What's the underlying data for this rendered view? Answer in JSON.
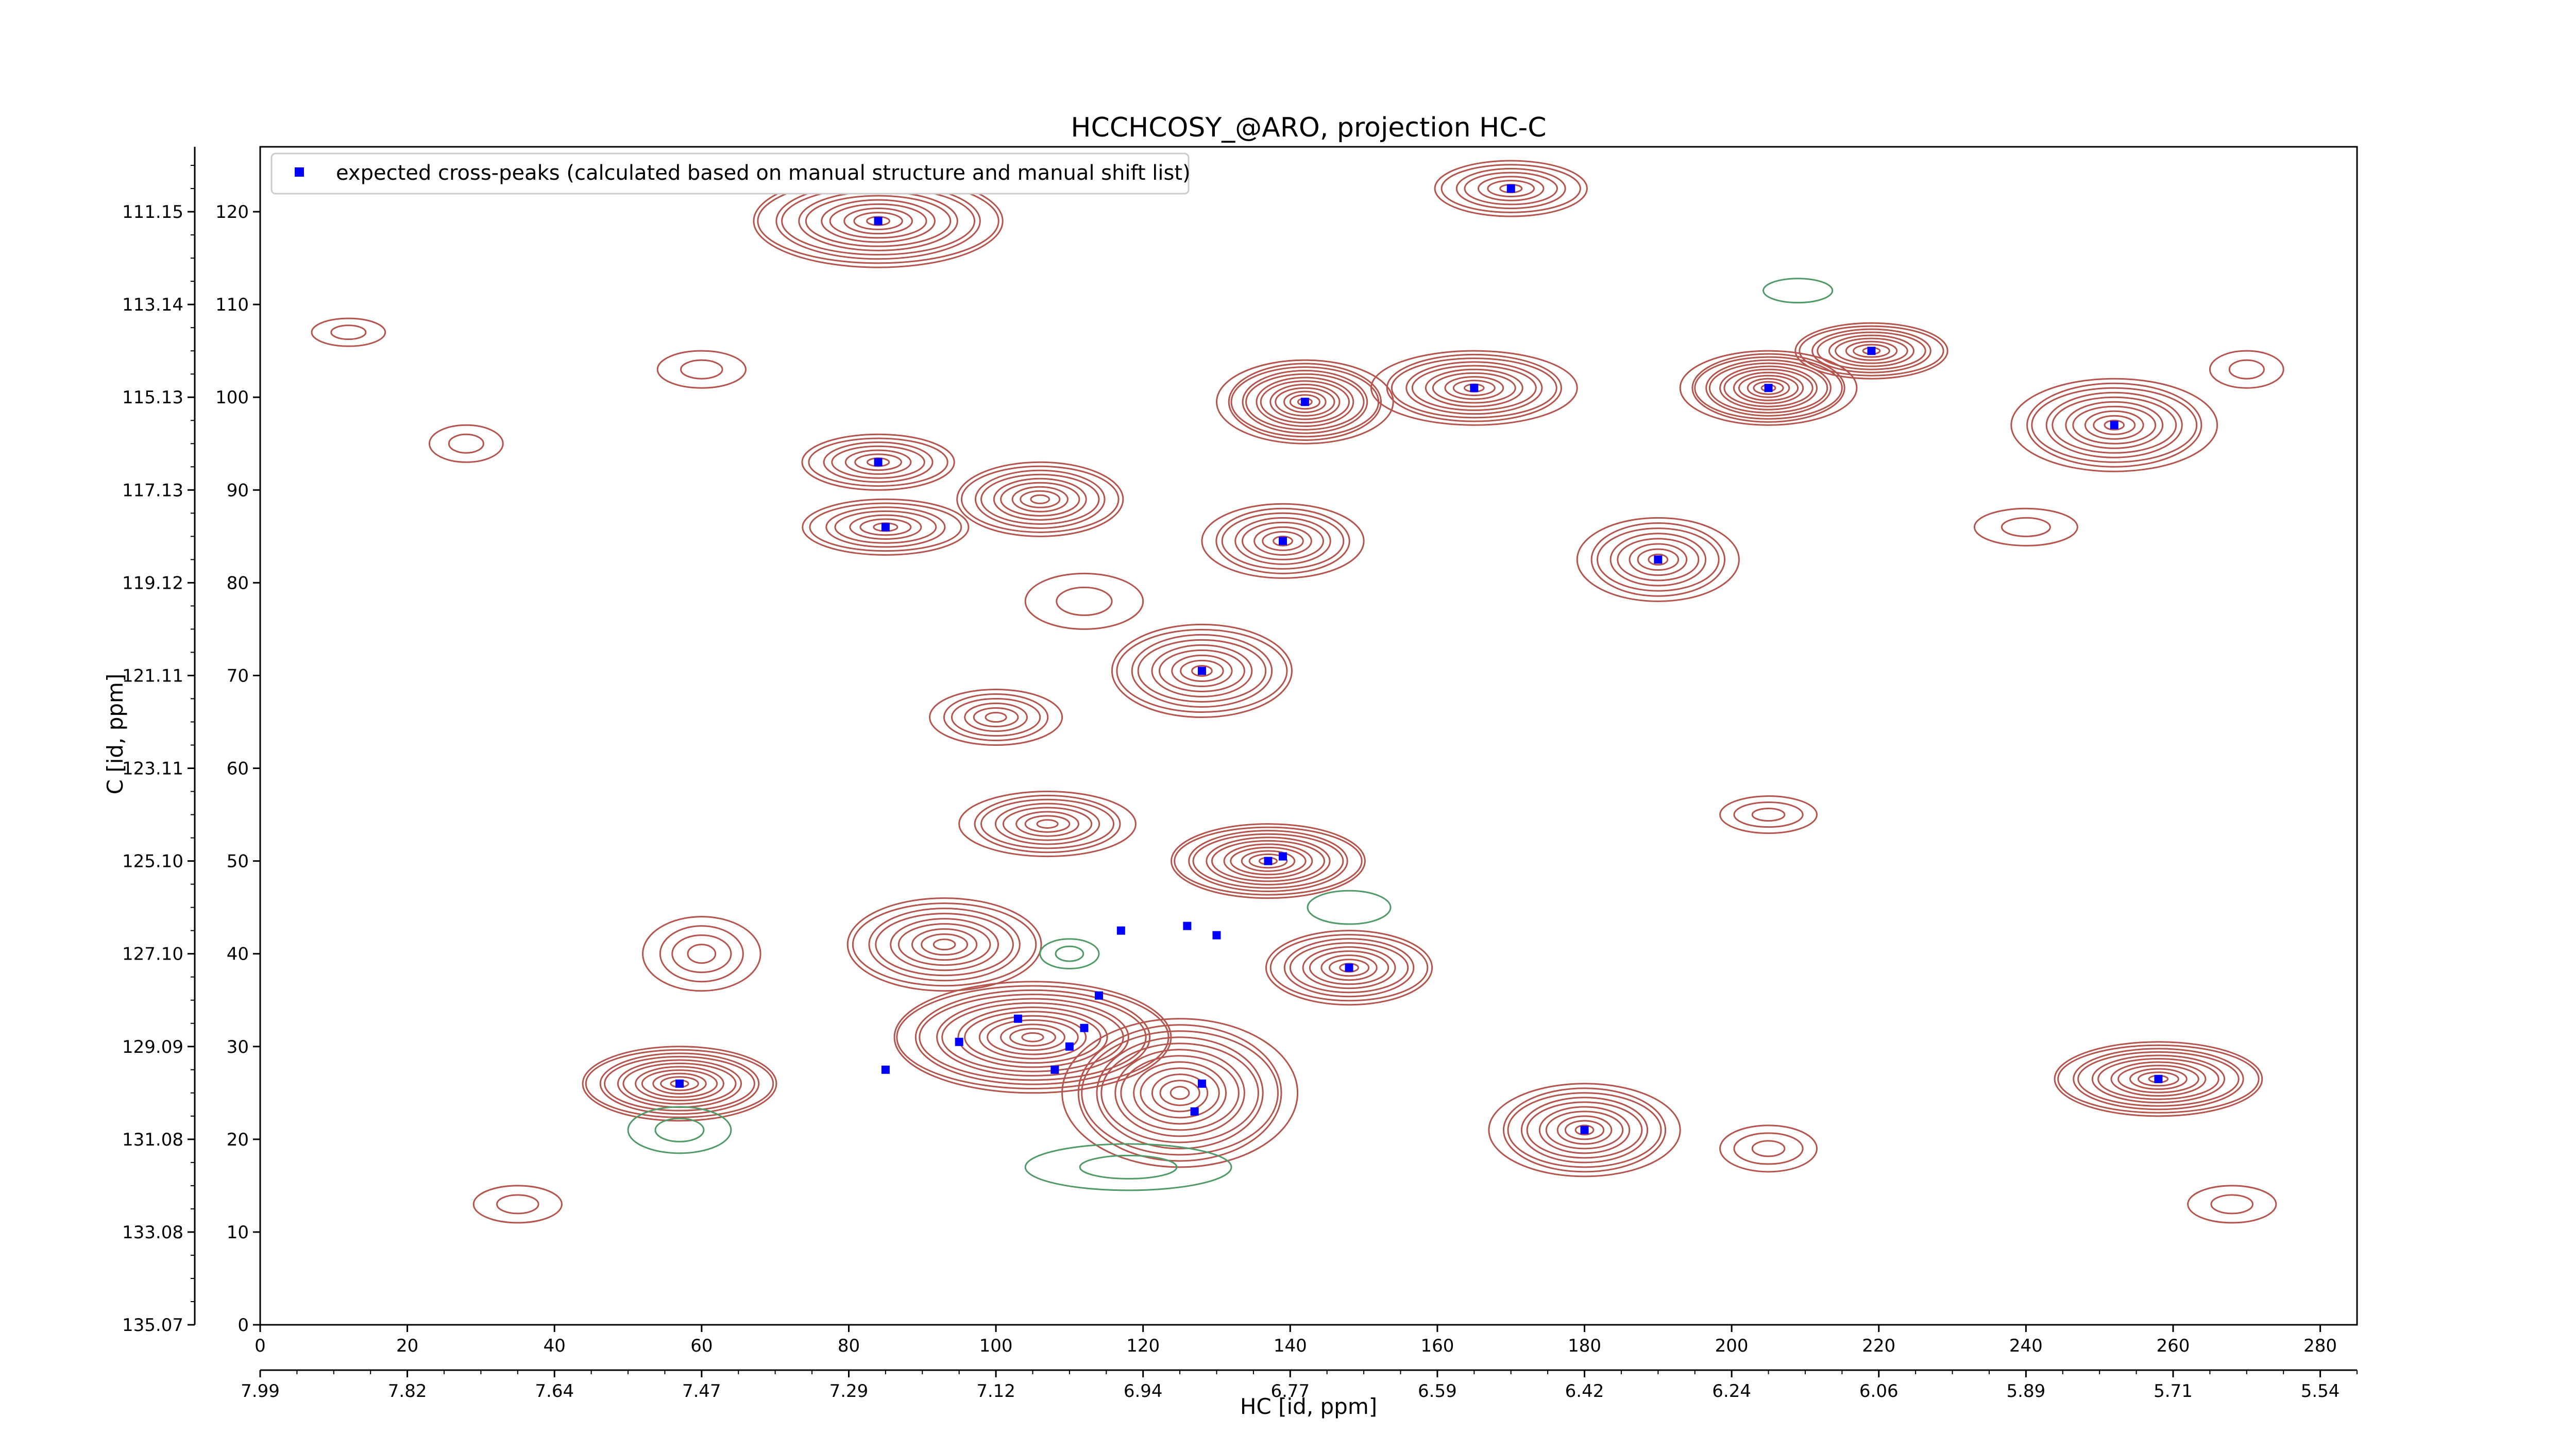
{
  "chart_data": {
    "type": "scatter",
    "title": "HCCHCOSY_@ARO, projection HC-C",
    "xlabel": "HC [id, ppm]",
    "ylabel": "C [id, ppm]",
    "xlim": [
      0,
      285
    ],
    "ylim": [
      0,
      127
    ],
    "x_ticks": [
      0,
      20,
      40,
      60,
      80,
      100,
      120,
      140,
      160,
      180,
      200,
      220,
      240,
      260,
      280
    ],
    "x_ticks_ppm": [
      "7.99",
      "7.82",
      "7.64",
      "7.47",
      "7.29",
      "7.12",
      "6.94",
      "6.77",
      "6.59",
      "6.42",
      "6.24",
      "6.06",
      "5.89",
      "5.71",
      "5.54"
    ],
    "y_ticks": [
      0,
      10,
      20,
      30,
      40,
      50,
      60,
      70,
      80,
      90,
      100,
      110,
      120
    ],
    "y_ticks_ppm": [
      "135.07",
      "133.08",
      "131.08",
      "129.09",
      "127.10",
      "125.10",
      "123.11",
      "121.11",
      "119.12",
      "117.13",
      "115.13",
      "113.14",
      "111.15"
    ],
    "legend": {
      "label": "expected cross-peaks (calculated based on manual structure and manual shift list)",
      "position": "top-left",
      "marker_color": "#0000ff"
    },
    "colors": {
      "positive_contour": "#b5544c",
      "negative_contour": "#4f9a66",
      "marker": "#0000ff"
    },
    "series": [
      {
        "name": "expected cross-peaks (calculated based on manual structure and manual shift list)",
        "points": [
          [
            84,
            119
          ],
          [
            170,
            122.5
          ],
          [
            142,
            99.5
          ],
          [
            165,
            101
          ],
          [
            205,
            101
          ],
          [
            219,
            105
          ],
          [
            252,
            97
          ],
          [
            84,
            93
          ],
          [
            85,
            86
          ],
          [
            139,
            84.5
          ],
          [
            190,
            82.5
          ],
          [
            128,
            70.5
          ],
          [
            137,
            50
          ],
          [
            139,
            50.5
          ],
          [
            117,
            42.5
          ],
          [
            126,
            43
          ],
          [
            130,
            42
          ],
          [
            148,
            38.5
          ],
          [
            114,
            35.5
          ],
          [
            103,
            33
          ],
          [
            112,
            32
          ],
          [
            95,
            30.5
          ],
          [
            110,
            30
          ],
          [
            108,
            27.5
          ],
          [
            85,
            27.5
          ],
          [
            57,
            26
          ],
          [
            128,
            26
          ],
          [
            127,
            23
          ],
          [
            180,
            21
          ],
          [
            258,
            26.5
          ]
        ]
      }
    ],
    "contours": {
      "positive": [
        {
          "x": 84,
          "y": 119,
          "rx": 18,
          "ry": 5,
          "n": 11
        },
        {
          "x": 170,
          "y": 122.5,
          "rx": 11,
          "ry": 3,
          "n": 7
        },
        {
          "x": 142,
          "y": 99.5,
          "rx": 12,
          "ry": 4.5,
          "n": 12
        },
        {
          "x": 165,
          "y": 101,
          "rx": 14,
          "ry": 4,
          "n": 10
        },
        {
          "x": 205,
          "y": 101,
          "rx": 12,
          "ry": 4,
          "n": 12
        },
        {
          "x": 219,
          "y": 105,
          "rx": 11,
          "ry": 3,
          "n": 9
        },
        {
          "x": 252,
          "y": 97,
          "rx": 14,
          "ry": 5,
          "n": 10
        },
        {
          "x": 84,
          "y": 93,
          "rx": 11,
          "ry": 3,
          "n": 7
        },
        {
          "x": 85,
          "y": 86,
          "rx": 12,
          "ry": 3,
          "n": 7
        },
        {
          "x": 106,
          "y": 89,
          "rx": 12,
          "ry": 4,
          "n": 9
        },
        {
          "x": 139,
          "y": 84.5,
          "rx": 11,
          "ry": 4,
          "n": 8
        },
        {
          "x": 190,
          "y": 82.5,
          "rx": 11,
          "ry": 4.5,
          "n": 8
        },
        {
          "x": 128,
          "y": 70.5,
          "rx": 13,
          "ry": 5,
          "n": 9
        },
        {
          "x": 100,
          "y": 65.5,
          "rx": 9,
          "ry": 3,
          "n": 6
        },
        {
          "x": 107,
          "y": 54,
          "rx": 12,
          "ry": 3.5,
          "n": 8
        },
        {
          "x": 137,
          "y": 50,
          "rx": 14,
          "ry": 4,
          "n": 11
        },
        {
          "x": 93,
          "y": 41,
          "rx": 14,
          "ry": 5,
          "n": 9
        },
        {
          "x": 148,
          "y": 38.5,
          "rx": 12,
          "ry": 4,
          "n": 9
        },
        {
          "x": 105,
          "y": 31,
          "rx": 20,
          "ry": 6,
          "n": 13
        },
        {
          "x": 125,
          "y": 25,
          "rx": 16,
          "ry": 8,
          "n": 12
        },
        {
          "x": 57,
          "y": 26,
          "rx": 14,
          "ry": 4,
          "n": 11
        },
        {
          "x": 180,
          "y": 21,
          "rx": 13,
          "ry": 5,
          "n": 10
        },
        {
          "x": 258,
          "y": 26.5,
          "rx": 15,
          "ry": 4,
          "n": 11
        },
        {
          "x": 28,
          "y": 95,
          "rx": 5,
          "ry": 2,
          "n": 2
        },
        {
          "x": 60,
          "y": 103,
          "rx": 6,
          "ry": 2,
          "n": 2
        },
        {
          "x": 60,
          "y": 40,
          "rx": 8,
          "ry": 4,
          "n": 4
        },
        {
          "x": 112,
          "y": 78,
          "rx": 8,
          "ry": 3,
          "n": 2
        },
        {
          "x": 205,
          "y": 55,
          "rx": 7,
          "ry": 2,
          "n": 3
        },
        {
          "x": 205,
          "y": 19,
          "rx": 7,
          "ry": 2.5,
          "n": 3
        },
        {
          "x": 12,
          "y": 107,
          "rx": 5,
          "ry": 1.5,
          "n": 2
        },
        {
          "x": 240,
          "y": 86,
          "rx": 7,
          "ry": 2,
          "n": 2
        },
        {
          "x": 270,
          "y": 103,
          "rx": 5,
          "ry": 2,
          "n": 2
        },
        {
          "x": 35,
          "y": 13,
          "rx": 6,
          "ry": 2,
          "n": 2
        },
        {
          "x": 268,
          "y": 13,
          "rx": 6,
          "ry": 2,
          "n": 2
        }
      ],
      "negative": [
        {
          "x": 57,
          "y": 21,
          "rx": 7,
          "ry": 2.5,
          "n": 2
        },
        {
          "x": 118,
          "y": 17,
          "rx": 14,
          "ry": 2.5,
          "n": 2
        },
        {
          "x": 148,
          "y": 45,
          "rx": 6,
          "ry": 1.8,
          "n": 1
        },
        {
          "x": 209,
          "y": 111.5,
          "rx": 5,
          "ry": 1.3,
          "n": 1
        },
        {
          "x": 110,
          "y": 40,
          "rx": 4,
          "ry": 1.6,
          "n": 2
        }
      ]
    }
  }
}
